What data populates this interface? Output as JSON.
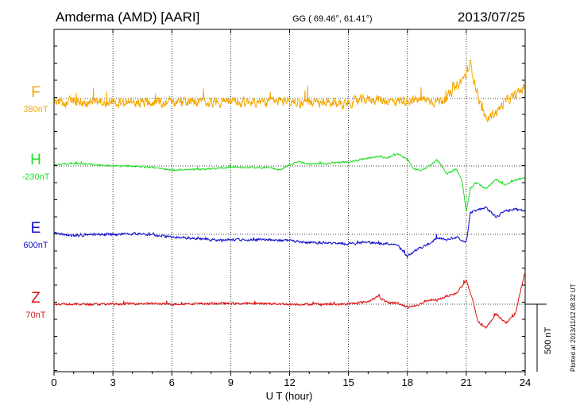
{
  "header": {
    "station": "Amderma (AMD)  [AARI]",
    "coords": "GG ( 69.46°,  61.41°)",
    "date": "2013/07/25"
  },
  "footer_note": "Plotted at 2013/11/12 08:32 UT",
  "chart_data": {
    "type": "line",
    "xlabel": "U T (hour)",
    "xlim": [
      0,
      24
    ],
    "x_ticks": [
      0,
      3,
      6,
      9,
      12,
      15,
      18,
      21,
      24
    ],
    "scale_bar_label": "500 nT",
    "scale_bar_nT": 500,
    "series": [
      {
        "name": "F",
        "baseline_label": "380nT",
        "baseline_nT": 380,
        "color": "#f5a800",
        "x": [
          0,
          0.5,
          1,
          1.5,
          2,
          2.5,
          3,
          3.5,
          4,
          4.5,
          5,
          5.5,
          6,
          6.5,
          7,
          7.5,
          8,
          8.5,
          9,
          9.5,
          10,
          10.5,
          11,
          11.5,
          12,
          12.5,
          13,
          13.5,
          14,
          14.5,
          15,
          15.5,
          16,
          16.5,
          17,
          17.5,
          18,
          18.5,
          19,
          19.5,
          20,
          20.5,
          21,
          21.2,
          21.5,
          21.8,
          22,
          22.3,
          22.6,
          23,
          23.5,
          24
        ],
        "y": [
          -20,
          -30,
          -20,
          -35,
          -25,
          -30,
          -30,
          -25,
          -30,
          -30,
          -25,
          -30,
          -25,
          -30,
          -25,
          -30,
          -25,
          -20,
          -25,
          -30,
          -20,
          -30,
          -25,
          -20,
          -20,
          -30,
          -30,
          -40,
          -40,
          -35,
          -30,
          -20,
          -5,
          -5,
          -20,
          -20,
          -10,
          -10,
          -10,
          -20,
          0,
          80,
          180,
          260,
          80,
          -80,
          -170,
          -120,
          -90,
          -20,
          20,
          90
        ],
        "noise_nT": 55
      },
      {
        "name": "H",
        "baseline_label": "-230nT",
        "baseline_nT": -230,
        "color": "#22dd22",
        "x": [
          0,
          1,
          2,
          3,
          4,
          5,
          6,
          7,
          8,
          9,
          10,
          11,
          11.5,
          12,
          12.5,
          13,
          14,
          15,
          16,
          16.5,
          17,
          17.5,
          18,
          18.3,
          18.7,
          19,
          19.3,
          19.5,
          19.8,
          20,
          20.5,
          20.8,
          21,
          21.2,
          21.5,
          22,
          22.5,
          23,
          23.5,
          24
        ],
        "y": [
          10,
          20,
          10,
          0,
          0,
          -10,
          -30,
          -25,
          -20,
          -10,
          -10,
          -10,
          -30,
          10,
          30,
          15,
          20,
          30,
          60,
          70,
          60,
          90,
          50,
          -20,
          -30,
          -10,
          20,
          50,
          -10,
          -60,
          -20,
          -120,
          -340,
          -170,
          -120,
          -170,
          -100,
          -140,
          -100,
          -90
        ],
        "noise_nT": 10
      },
      {
        "name": "E",
        "baseline_label": "600nT",
        "baseline_nT": 600,
        "color": "#1010cc",
        "x": [
          0,
          1,
          2,
          3,
          4,
          5,
          6,
          7,
          8,
          9,
          10,
          11,
          12,
          13,
          14,
          15,
          16,
          17,
          17.5,
          17.8,
          18,
          18.5,
          19,
          19.5,
          20,
          20.5,
          21,
          21.2,
          21.5,
          22,
          22.5,
          23,
          23.5,
          24
        ],
        "y": [
          10,
          -10,
          0,
          0,
          5,
          0,
          -20,
          -30,
          -40,
          -40,
          -40,
          -40,
          -50,
          -60,
          -60,
          -70,
          -60,
          -70,
          -80,
          -130,
          -160,
          -110,
          -80,
          -30,
          -40,
          -20,
          -60,
          160,
          180,
          200,
          130,
          170,
          190,
          170
        ],
        "noise_nT": 14
      },
      {
        "name": "Z",
        "baseline_label": "70nT",
        "baseline_nT": 70,
        "color": "#dd1111",
        "x": [
          0,
          1,
          2,
          3,
          4,
          5,
          6,
          7,
          8,
          9,
          10,
          11,
          12,
          13,
          14,
          15,
          16,
          16.5,
          17,
          17.5,
          18,
          18.5,
          19,
          19.5,
          20,
          20.5,
          21,
          21.3,
          21.6,
          22,
          22.5,
          23,
          23.5,
          24
        ],
        "y": [
          0,
          0,
          0,
          0,
          5,
          5,
          0,
          5,
          5,
          5,
          5,
          5,
          0,
          0,
          0,
          0,
          20,
          60,
          10,
          10,
          -20,
          -10,
          30,
          30,
          60,
          80,
          180,
          40,
          -130,
          -180,
          -70,
          -140,
          -70,
          240
        ],
        "noise_nT": 12
      }
    ]
  }
}
